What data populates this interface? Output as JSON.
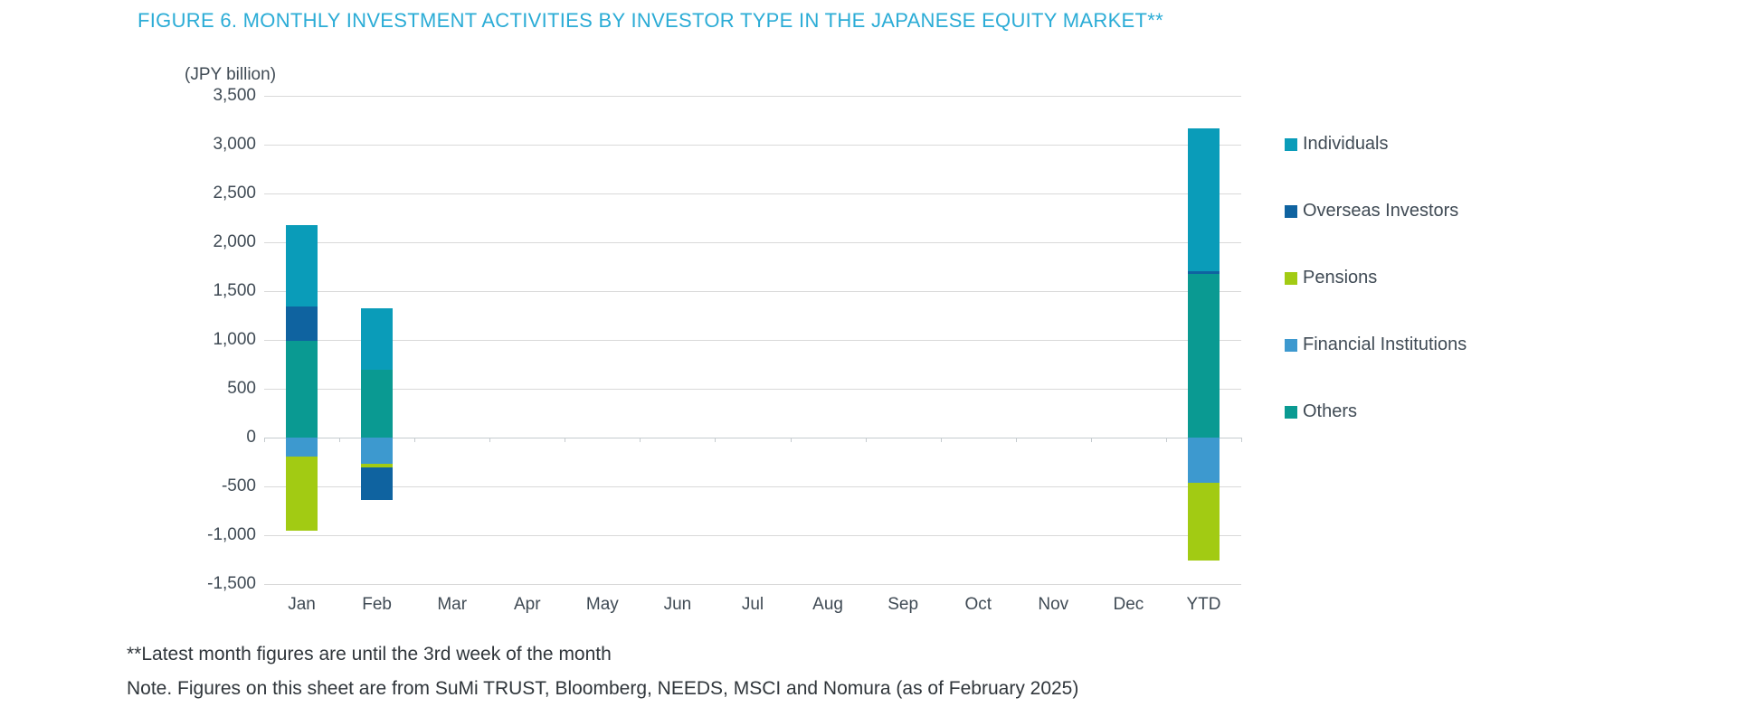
{
  "title": "FIGURE 6. MONTHLY INVESTMENT ACTIVITIES BY INVESTOR TYPE IN THE JAPANESE EQUITY MARKET**",
  "axis_unit_label": "(JPY billion)",
  "footnotes": {
    "line1": "**Latest month figures are until the 3rd week of the month",
    "line2": "Note. Figures on this sheet are from SuMi TRUST, Bloomberg, NEEDS, MSCI and Nomura (as of February 2025)"
  },
  "colors": {
    "title_accent": "#2BACD6",
    "axis_text": "#3F4A54",
    "gridline": "#D9D9D9",
    "zero_line": "#C5CBCF",
    "footnote_text": "#30363B"
  },
  "chart_data": {
    "type": "bar",
    "stacked": true,
    "title": "FIGURE 6. MONTHLY INVESTMENT ACTIVITIES BY INVESTOR TYPE IN THE JAPANESE EQUITY MARKET**",
    "xlabel": "",
    "ylabel": "(JPY billion)",
    "ylim": [
      -1500,
      3500
    ],
    "ytick_step": 500,
    "grid": true,
    "legend_position": "right",
    "stack_order_note": "segments stack outward from zero in reverse legend order: Others, Financial Institutions, Pensions, Overseas Investors, Individuals",
    "categories": [
      "Jan",
      "Feb",
      "Mar",
      "Apr",
      "May",
      "Jun",
      "Jul",
      "Aug",
      "Sep",
      "Oct",
      "Nov",
      "Dec",
      "YTD"
    ],
    "series": [
      {
        "name": "Individuals",
        "color": "#0A9CB9",
        "values": [
          840,
          630,
          null,
          null,
          null,
          null,
          null,
          null,
          null,
          null,
          null,
          null,
          1470
        ]
      },
      {
        "name": "Overseas Investors",
        "color": "#0F63A0",
        "values": [
          350,
          -330,
          null,
          null,
          null,
          null,
          null,
          null,
          null,
          null,
          null,
          null,
          20
        ]
      },
      {
        "name": "Pensions",
        "color": "#A2CB13",
        "values": [
          -760,
          -40,
          null,
          null,
          null,
          null,
          null,
          null,
          null,
          null,
          null,
          null,
          -800
        ]
      },
      {
        "name": "Financial Institutions",
        "color": "#3D99CF",
        "values": [
          -190,
          -270,
          null,
          null,
          null,
          null,
          null,
          null,
          null,
          null,
          null,
          null,
          -460
        ]
      },
      {
        "name": "Others",
        "color": "#0A9A92",
        "values": [
          990,
          690,
          null,
          null,
          null,
          null,
          null,
          null,
          null,
          null,
          null,
          null,
          1680
        ]
      }
    ]
  }
}
